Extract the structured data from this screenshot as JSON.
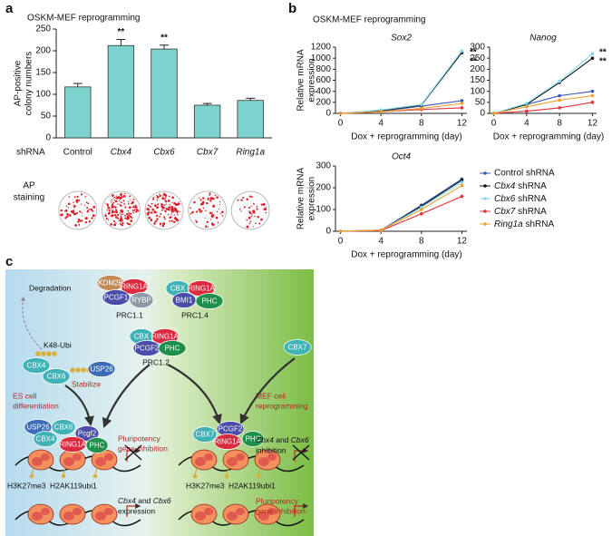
{
  "panels": {
    "a": "a",
    "b": "b",
    "c": "c"
  },
  "panel_b_title": "OSKM-MEF reprogramming",
  "chart_data": [
    {
      "type": "bar",
      "title": "OSKM-MEF reprogramming",
      "ylabel": [
        "AP-positive",
        "colony numbers"
      ],
      "xlabel": "shRNA",
      "categories": [
        "Control",
        "Cbx4",
        "Cbx6",
        "Cbx7",
        "Ring1a"
      ],
      "italic_categories": [
        false,
        true,
        true,
        true,
        true
      ],
      "values": [
        117,
        212,
        204,
        75,
        86
      ],
      "errors": [
        8,
        14,
        9,
        4,
        5
      ],
      "significance": [
        null,
        "**",
        "**",
        null,
        null
      ],
      "color": "#7fd3cf",
      "ylim": [
        0,
        250
      ],
      "yticks": [
        0,
        50,
        100,
        150,
        200,
        250
      ],
      "row_label": [
        "AP",
        "staining"
      ]
    },
    {
      "type": "line",
      "title": "Sox2",
      "ylabel": [
        "Relative mRNA",
        "expression"
      ],
      "xlabel": "Dox + reprogramming (day)",
      "x": [
        0,
        4,
        8,
        12
      ],
      "xlim": [
        -0.5,
        12.5
      ],
      "xticks": [
        0,
        4,
        8,
        12
      ],
      "ylim": [
        0,
        1200
      ],
      "yticks": [
        0,
        200,
        400,
        600,
        800,
        1000,
        1200
      ],
      "series": [
        {
          "values": [
            0,
            40,
            130,
            230
          ]
        },
        {
          "values": [
            0,
            50,
            150,
            1100
          ]
        },
        {
          "values": [
            0,
            60,
            160,
            1130
          ]
        },
        {
          "values": [
            0,
            30,
            70,
            100
          ]
        },
        {
          "values": [
            0,
            30,
            90,
            180
          ]
        }
      ],
      "annotations": [
        "**",
        "**"
      ]
    },
    {
      "type": "line",
      "title": "Nanog",
      "xlabel": "Dox + reprogramming (day)",
      "x": [
        0,
        4,
        8,
        12
      ],
      "xlim": [
        -0.5,
        12.5
      ],
      "xticks": [
        0,
        4,
        8,
        12
      ],
      "ylim": [
        0,
        300
      ],
      "yticks": [
        0,
        50,
        100,
        150,
        200,
        250,
        300
      ],
      "series": [
        {
          "values": [
            0,
            40,
            80,
            100
          ]
        },
        {
          "values": [
            0,
            40,
            140,
            250
          ]
        },
        {
          "values": [
            0,
            45,
            145,
            270
          ]
        },
        {
          "values": [
            0,
            10,
            25,
            50
          ]
        },
        {
          "values": [
            0,
            30,
            60,
            80
          ]
        }
      ],
      "annotations": [
        "**",
        "**"
      ]
    },
    {
      "type": "line",
      "title": "Oct4",
      "ylabel": [
        "Relative mRNA",
        "expression"
      ],
      "xlabel": "Dox + reprogramming (day)",
      "x": [
        0,
        4,
        8,
        12
      ],
      "xlim": [
        -0.5,
        12.5
      ],
      "xticks": [
        0,
        4,
        8,
        12
      ],
      "ylim": [
        0,
        300
      ],
      "yticks": [
        0,
        100,
        200,
        300
      ],
      "series": [
        {
          "name": "Control shRNA",
          "color": "#3a56b8",
          "values": [
            0,
            5,
            120,
            240
          ]
        },
        {
          "name": "Cbx4 shRNA",
          "color": "#111111",
          "values": [
            0,
            5,
            115,
            235
          ]
        },
        {
          "name": "Cbx6 shRNA",
          "color": "#7fd8e4",
          "values": [
            0,
            5,
            110,
            225
          ]
        },
        {
          "name": "Cbx7 shRNA",
          "color": "#e0323a",
          "values": [
            0,
            3,
            80,
            160
          ]
        },
        {
          "name": "Ring1a shRNA",
          "color": "#f0a030",
          "values": [
            0,
            5,
            100,
            210
          ]
        }
      ],
      "legend": "right"
    }
  ],
  "diagram": {
    "degradation": "Degradation",
    "k48": "K48-Ubi",
    "stabilize": "Stabilize",
    "prc11": {
      "label": "PRC1.1",
      "parts": [
        "KDM2B",
        "RING1A",
        "PCGF1",
        "RYBP"
      ]
    },
    "prc14": {
      "label": "PRC1.4",
      "parts": [
        "CBX",
        "RING1A",
        "BMI1",
        "PHC"
      ]
    },
    "prc12": {
      "label": "PRC1.2",
      "parts": [
        "CBX",
        "RING1A",
        "PCGF2",
        "PHC"
      ]
    },
    "free": [
      "CBX4",
      "CBX6",
      "USP26",
      "CBX7"
    ],
    "es": [
      "ES cell",
      "differentiation"
    ],
    "mef": [
      "MEF cell",
      "reprogramming"
    ],
    "left_complex": [
      "USP26",
      "CBX6",
      "Pcgf2",
      "CBX4",
      "RING1A",
      "PHC"
    ],
    "right_complex": [
      "CBX7",
      "PCGF2",
      "RING1A",
      "PHC"
    ],
    "pluri_left": [
      "Pluripotency",
      "gene inhibition"
    ],
    "marks_left": [
      "H3K27me3",
      "H2AK119ubi1"
    ],
    "marks_right": [
      "H3K27me3",
      "H2AK119ubi1"
    ],
    "expr_left": [
      "Cbx4",
      "and",
      "Cbx6",
      "expression"
    ],
    "inhib_right": [
      "Cbx4",
      "and",
      "Cbx6",
      "inhibition"
    ],
    "pluri_right": [
      "Pluripotency",
      "gene inhibition"
    ]
  }
}
